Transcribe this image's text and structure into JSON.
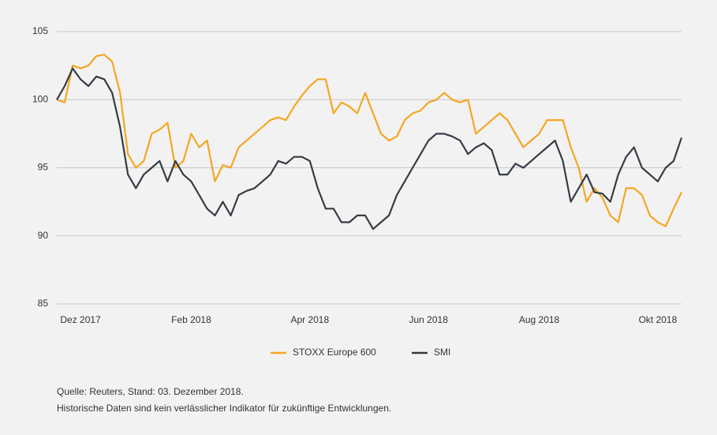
{
  "chart_data": {
    "type": "line",
    "categories": [
      null,
      null,
      null,
      "Dez 2017",
      null,
      null,
      null,
      null,
      null,
      null,
      null,
      null,
      null,
      null,
      null,
      null,
      null,
      "Feb 2018",
      null,
      null,
      null,
      null,
      null,
      null,
      null,
      null,
      null,
      null,
      null,
      null,
      null,
      null,
      "Apr 2018",
      null,
      null,
      null,
      null,
      null,
      null,
      null,
      null,
      null,
      null,
      null,
      null,
      null,
      null,
      "Jun 2018",
      null,
      null,
      null,
      null,
      null,
      null,
      null,
      null,
      null,
      null,
      null,
      null,
      null,
      "Aug 2018",
      null,
      null,
      null,
      null,
      null,
      null,
      null,
      null,
      null,
      null,
      null,
      null,
      null,
      null,
      "Okt 2018",
      null,
      null,
      null
    ],
    "series": [
      {
        "name": "STOXX Europe 600",
        "color": "#f5a623",
        "values": [
          100,
          99.8,
          102.5,
          102.3,
          102.5,
          103.2,
          103.3,
          102.8,
          100.5,
          96,
          95,
          95.5,
          97.5,
          97.8,
          98.3,
          95,
          95.5,
          97.5,
          96.5,
          97,
          94,
          95.2,
          95,
          96.5,
          97,
          97.5,
          98,
          98.5,
          98.7,
          98.5,
          99.5,
          100.3,
          101,
          101.5,
          101.5,
          99,
          99.8,
          99.5,
          99,
          100.5,
          99,
          97.5,
          97,
          97.3,
          98.5,
          99,
          99.2,
          99.8,
          100,
          100.5,
          100,
          99.8,
          100,
          97.5,
          98,
          98.5,
          99,
          98.5,
          97.5,
          96.5,
          97,
          97.5,
          98.5,
          98.5,
          98.5,
          96.5,
          95,
          92.5,
          93.5,
          92.8,
          91.5,
          91,
          93.5,
          93.5,
          93,
          91.5,
          91,
          90.7,
          92,
          93.2
        ]
      },
      {
        "name": "SMI",
        "color": "#363c45",
        "values": [
          100,
          101,
          102.3,
          101.5,
          101,
          101.7,
          101.5,
          100.5,
          98,
          94.5,
          93.5,
          94.5,
          95,
          95.5,
          94,
          95.5,
          94.5,
          94,
          93,
          92,
          91.5,
          92.5,
          91.5,
          93,
          93.3,
          93.5,
          94,
          94.5,
          95.5,
          95.3,
          95.8,
          95.8,
          95.5,
          93.5,
          92,
          92,
          91,
          91,
          91.5,
          91.5,
          90.5,
          91,
          91.5,
          93,
          94,
          95,
          96,
          97,
          97.5,
          97.5,
          97.3,
          97,
          96,
          96.5,
          96.8,
          96.3,
          94.5,
          94.5,
          95.3,
          95,
          95.5,
          96,
          96.5,
          97,
          95.5,
          92.5,
          93.5,
          94.5,
          93.2,
          93.1,
          92.5,
          94.5,
          95.8,
          96.5,
          95,
          94.5,
          94,
          95,
          95.5,
          97.2
        ]
      }
    ],
    "ylim": [
      85,
      105
    ],
    "yticks": [
      85,
      90,
      95,
      100,
      105
    ],
    "grid": true,
    "source": "Quelle: Reuters, Stand: 03. Dezember 2018.",
    "note": "Historische Daten sind kein verlässlicher Indikator für zukünftige Entwicklungen."
  }
}
